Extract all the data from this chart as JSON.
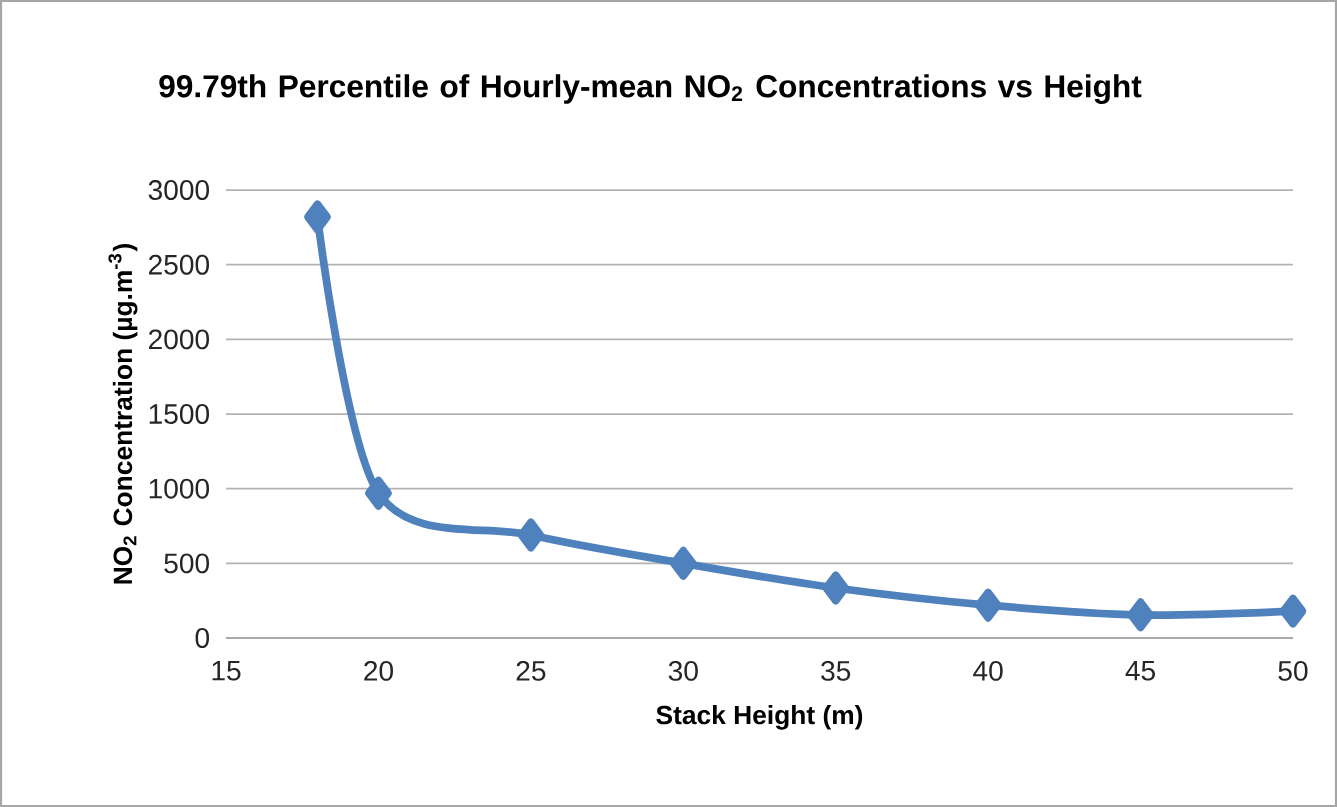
{
  "chart_data": {
    "type": "line",
    "title": "99.79th Percentile of Hourly-mean NO$_{2}$ Concentrations vs Height",
    "xlabel": "Stack Height (m)",
    "ylabel": "NO$_{2}$ Concentration (µg.m$^{-3}$)",
    "x": [
      18,
      20,
      25,
      30,
      35,
      40,
      45,
      50
    ],
    "series": [
      {
        "color": "#4f81bd",
        "values": [
          2820,
          970,
          690,
          500,
          335,
          220,
          155,
          180
        ]
      }
    ],
    "xlim": [
      15,
      50
    ],
    "xticks": [
      15,
      20,
      25,
      30,
      35,
      40,
      45,
      50
    ],
    "ylim": [
      0,
      3000
    ],
    "yticks": [
      0,
      500,
      1000,
      1500,
      2000,
      2500,
      3000
    ],
    "grid": "y",
    "marker": "diamond"
  }
}
